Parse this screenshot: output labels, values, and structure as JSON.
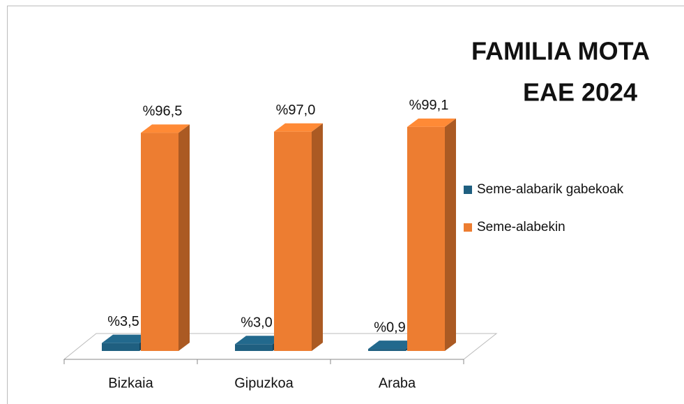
{
  "chart_data": {
    "type": "bar3d",
    "title": "FAMILIA MOTA",
    "subtitle": "EAE 2024",
    "categories": [
      "Bizkaia",
      "Gipuzkoa",
      "Araba"
    ],
    "series": [
      {
        "name": "Seme-alabarik gabekoak",
        "color": "#1f5f80",
        "values": [
          3.5,
          3.0,
          0.9
        ],
        "value_labels": [
          "%3,5",
          "%3,0",
          "%0,9"
        ]
      },
      {
        "name": "Seme-alabekin",
        "color": "#ed7d31",
        "values": [
          96.5,
          97.0,
          99.1
        ],
        "value_labels": [
          "%96,5",
          "%97,0",
          "%99,1"
        ]
      }
    ],
    "legend": "right"
  }
}
